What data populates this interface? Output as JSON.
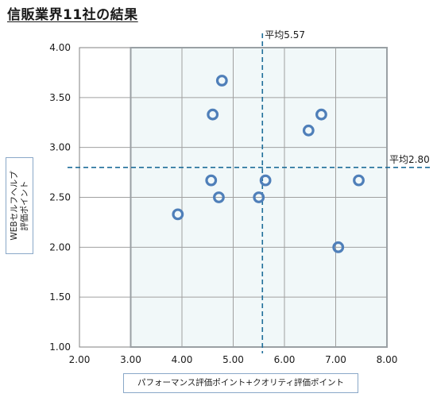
{
  "title": "信販業界11社の結果",
  "chart_data": {
    "type": "scatter",
    "xlabel": "パフォーマンス評価ポイント+クオリティ評価ポイント",
    "ylabel_line1": "WEBセルフヘルプ",
    "ylabel_line2": "評価ポイント",
    "xlim": [
      2.0,
      8.0
    ],
    "ylim": [
      1.0,
      4.0
    ],
    "x_ticks": [
      "2.00",
      "3.00",
      "4.00",
      "5.00",
      "6.00",
      "7.00",
      "8.00"
    ],
    "y_ticks": [
      "1.00",
      "1.50",
      "2.00",
      "2.50",
      "3.00",
      "3.50",
      "4.00"
    ],
    "grid": true,
    "avg_x": 5.57,
    "avg_y": 2.8,
    "avg_x_label": "平均5.57",
    "avg_y_label": "平均2.80",
    "points": [
      {
        "x": 3.92,
        "y": 2.33
      },
      {
        "x": 4.57,
        "y": 2.67
      },
      {
        "x": 4.72,
        "y": 2.5
      },
      {
        "x": 4.6,
        "y": 3.33
      },
      {
        "x": 4.78,
        "y": 3.67
      },
      {
        "x": 5.5,
        "y": 2.5
      },
      {
        "x": 5.63,
        "y": 2.67
      },
      {
        "x": 6.47,
        "y": 3.17
      },
      {
        "x": 6.72,
        "y": 3.33
      },
      {
        "x": 7.05,
        "y": 2.0
      },
      {
        "x": 7.45,
        "y": 2.67
      }
    ],
    "colors": {
      "marker": "#4f7fb9",
      "avg_line": "#1f6e9a",
      "grid": "#a0a0a0",
      "shade": "#f1f8f9"
    }
  }
}
